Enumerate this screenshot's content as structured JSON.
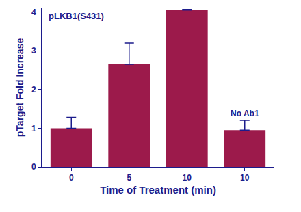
{
  "chart_data": {
    "type": "bar",
    "title": "pLKB1(S431)",
    "x_label": "Time of Treatment (min)",
    "y_label": "pTarget Fold Increase",
    "categories": [
      "0",
      "5",
      "10",
      "10"
    ],
    "values": [
      1.0,
      2.65,
      4.05,
      0.95
    ],
    "errors": [
      0.28,
      0.55,
      0.02,
      0.25
    ],
    "color": "#9c1a4b",
    "ylim": [
      0,
      4.1
    ],
    "yticks": [
      0,
      1,
      2,
      3,
      4
    ],
    "grid": false,
    "annotations": [
      {
        "text": "No Ab1",
        "x": 3
      }
    ]
  }
}
